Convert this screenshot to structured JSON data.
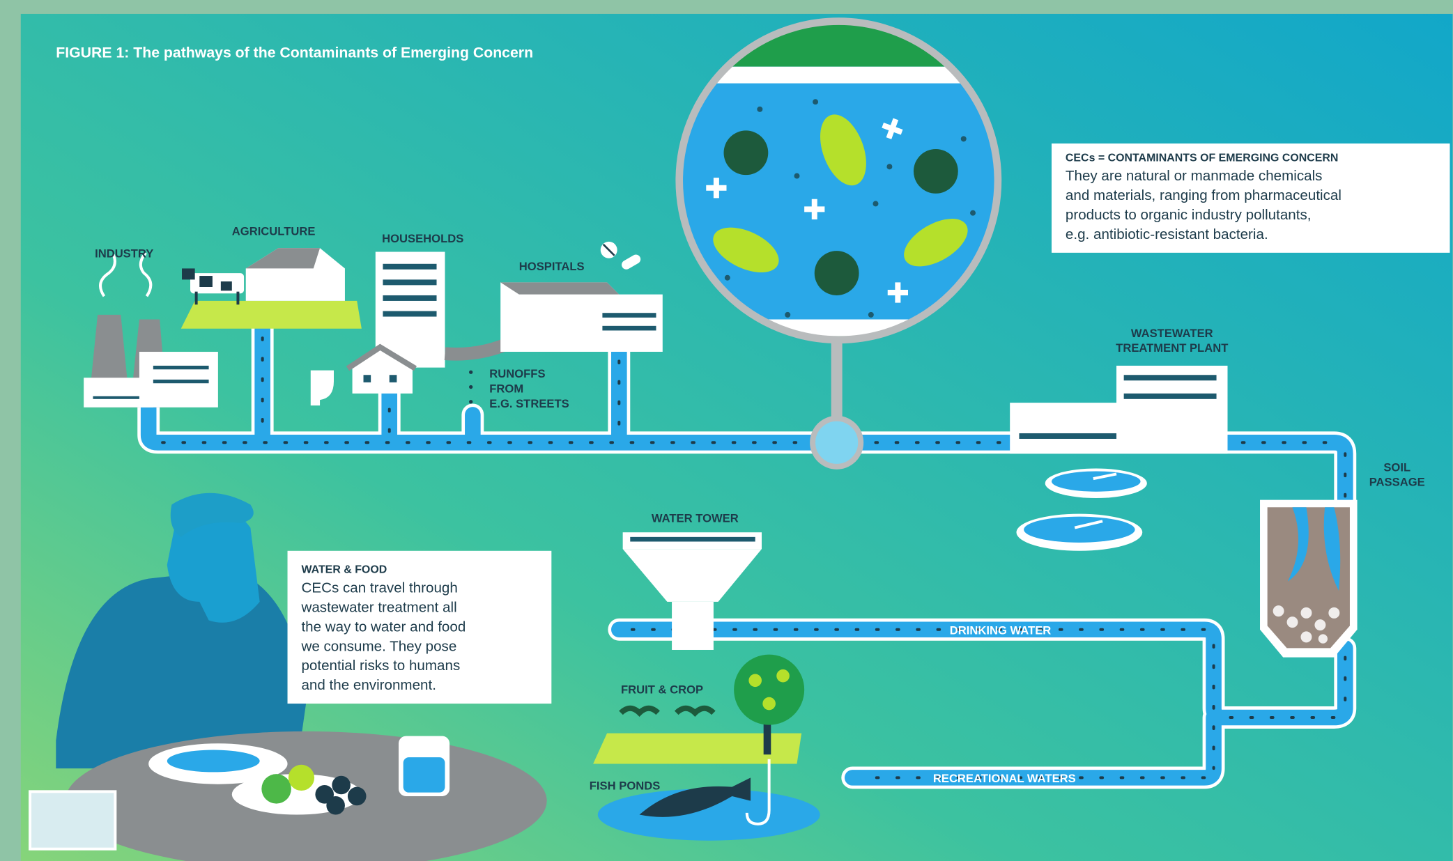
{
  "title": "FIGURE 1: The pathways of the Contaminants of Emerging Concern",
  "sources": [
    "INDUSTRY",
    "AGRICULTURE",
    "HOUSEHOLDS",
    "HOSPITALS"
  ],
  "runoffs": [
    "RUNOFFS",
    "FROM",
    "E.G. STREETS"
  ],
  "treatment_plant": [
    "WASTEWATER",
    "TREATMENT PLANT"
  ],
  "soil_passage": [
    "SOIL",
    "PASSAGE"
  ],
  "water_tower": "WATER TOWER",
  "drinking_water": "DRINKING WATER",
  "fruit_crop": "FRUIT & CROP",
  "fish_ponds": "FISH PONDS",
  "recreational_waters": "RECREATIONAL WATERS",
  "cec_box": {
    "heading": "CECs = CONTAMINANTS OF EMERGING CONCERN",
    "lines": [
      "They are natural or manmade chemicals",
      "and materials, ranging from pharmaceutical",
      "products to organic industry pollutants,",
      "e.g. antibiotic-resistant bacteria."
    ]
  },
  "food_box": {
    "heading": "WATER & FOOD",
    "lines": [
      "CECs can travel through",
      "wastewater treatment all",
      "the way to water and food",
      "we consume. They pose",
      "potential risks to humans",
      "and the environment."
    ]
  }
}
